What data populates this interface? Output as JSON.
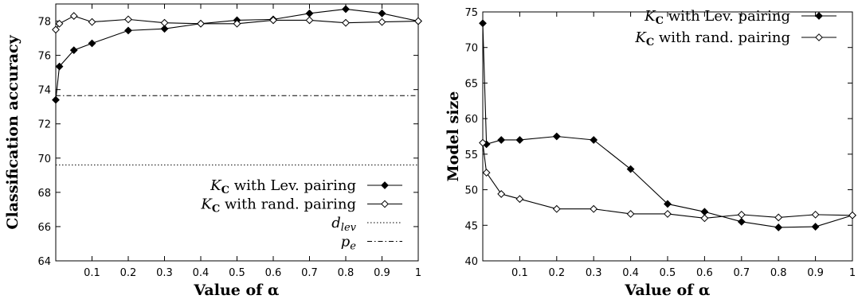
{
  "chart_data": [
    {
      "type": "line",
      "xlabel": "Value of α",
      "ylabel": "Classification accuracy",
      "xlim": [
        0,
        1
      ],
      "ylim": [
        64,
        79
      ],
      "x_ticks": [
        0.1,
        0.2,
        0.3,
        0.4,
        0.5,
        0.6,
        0.7,
        0.8,
        0.9,
        1
      ],
      "y_ticks": [
        64,
        66,
        68,
        70,
        72,
        74,
        76,
        78
      ],
      "grid": false,
      "legend_position": "bottom-right",
      "series": [
        {
          "name": "K_C with Lev. pairing",
          "label_main": "K",
          "label_sub": "C",
          "label_rest": " with Lev. pairing",
          "marker": "filled-diamond",
          "x": [
            0,
            0.01,
            0.05,
            0.1,
            0.2,
            0.3,
            0.4,
            0.5,
            0.6,
            0.7,
            0.8,
            0.9,
            1
          ],
          "y": [
            73.4,
            75.35,
            76.3,
            76.7,
            77.45,
            77.55,
            77.85,
            78.05,
            78.1,
            78.45,
            78.7,
            78.45,
            78.0
          ]
        },
        {
          "name": "K_C with rand. pairing",
          "label_main": "K",
          "label_sub": "C",
          "label_rest": " with rand. pairing",
          "marker": "open-diamond",
          "x": [
            0,
            0.01,
            0.05,
            0.1,
            0.2,
            0.3,
            0.4,
            0.5,
            0.6,
            0.7,
            0.8,
            0.9,
            1
          ],
          "y": [
            77.5,
            77.85,
            78.3,
            77.95,
            78.1,
            77.9,
            77.85,
            77.85,
            78.05,
            78.05,
            77.9,
            77.95,
            78.0
          ]
        }
      ],
      "reference_lines": [
        {
          "name": "d_lev",
          "label_main": "d",
          "label_sub": "lev",
          "style": "dotted",
          "y": 69.6
        },
        {
          "name": "p_e",
          "label_main": "p",
          "label_sub": "e",
          "style": "dash-dot",
          "y": 73.65
        }
      ]
    },
    {
      "type": "line",
      "xlabel": "Value of α",
      "ylabel": "Model size",
      "xlim": [
        0,
        1
      ],
      "ylim": [
        40,
        75
      ],
      "x_ticks": [
        0.1,
        0.2,
        0.3,
        0.4,
        0.5,
        0.6,
        0.7,
        0.8,
        0.9,
        1
      ],
      "y_ticks": [
        40,
        45,
        50,
        55,
        60,
        65,
        70,
        75
      ],
      "grid": false,
      "legend_position": "top-right",
      "series": [
        {
          "name": "K_C with Lev. pairing",
          "label_main": "K",
          "label_sub": "C",
          "label_rest": " with Lev. pairing",
          "marker": "filled-diamond",
          "x": [
            0,
            0.01,
            0.05,
            0.1,
            0.2,
            0.3,
            0.4,
            0.5,
            0.6,
            0.7,
            0.8,
            0.9,
            1
          ],
          "y": [
            73.4,
            56.4,
            57.0,
            57.0,
            57.5,
            57.0,
            52.9,
            48.0,
            46.9,
            45.5,
            44.7,
            44.8,
            46.4
          ]
        },
        {
          "name": "K_C with rand. pairing",
          "label_main": "K",
          "label_sub": "C",
          "label_rest": " with rand. pairing",
          "marker": "open-diamond",
          "x": [
            0,
            0.01,
            0.05,
            0.1,
            0.2,
            0.3,
            0.4,
            0.5,
            0.6,
            0.7,
            0.8,
            0.9,
            1
          ],
          "y": [
            56.6,
            52.4,
            49.4,
            48.7,
            47.3,
            47.3,
            46.6,
            46.6,
            46.0,
            46.5,
            46.1,
            46.5,
            46.4
          ]
        }
      ],
      "reference_lines": []
    }
  ]
}
